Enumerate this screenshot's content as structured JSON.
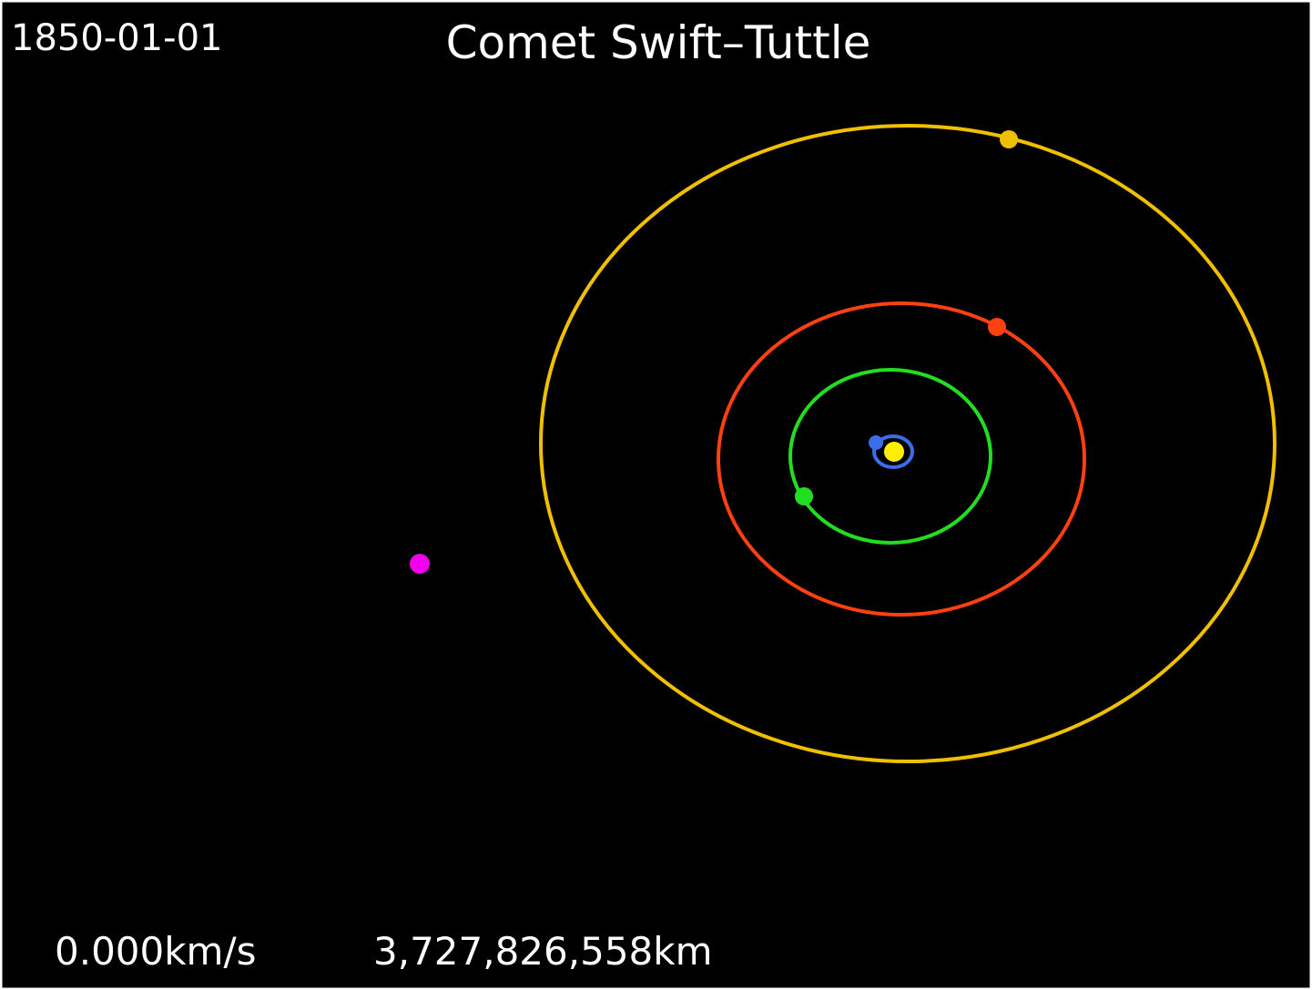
{
  "date": "1850-01-01",
  "title": "Comet Swift–Tuttle",
  "speed": "0.000km/s",
  "distance": "3,727,826,558km"
}
